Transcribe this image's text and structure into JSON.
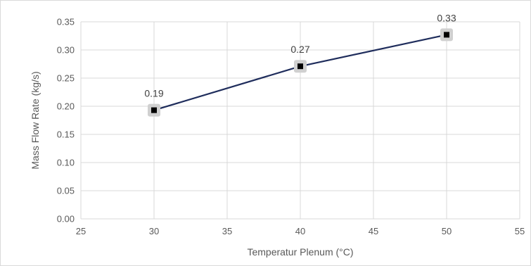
{
  "chart_data": {
    "type": "line",
    "title": "",
    "xlabel": "Temperatur Plenum (°C)",
    "ylabel": "Mass Flow Rate (kg/s)",
    "xlim": [
      25,
      55
    ],
    "ylim": [
      0,
      0.35
    ],
    "x_ticks": [
      25,
      30,
      35,
      40,
      45,
      50,
      55
    ],
    "y_ticks": [
      "0.00",
      "0.05",
      "0.10",
      "0.15",
      "0.20",
      "0.25",
      "0.30",
      "0.35"
    ],
    "grid": true,
    "legend": "none",
    "series": [
      {
        "x": [
          30,
          40,
          50
        ],
        "values": [
          0.193,
          0.271,
          0.327
        ],
        "data_labels": [
          "0.19",
          "0.27",
          "0.33"
        ],
        "color": "#1f2d5c",
        "marker_color": "#000000",
        "marker_halo_color": "#d0d0d0"
      }
    ]
  }
}
